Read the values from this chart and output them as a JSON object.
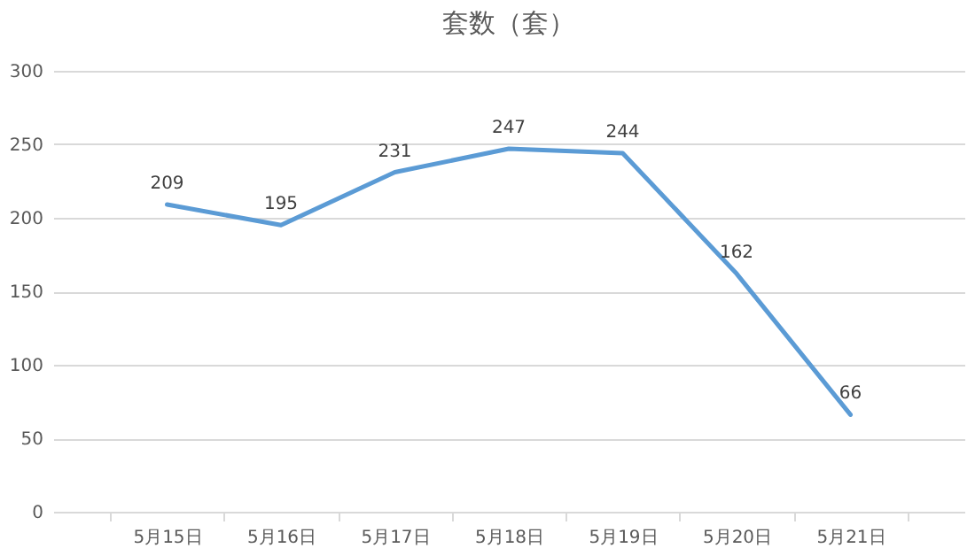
{
  "chart_data": {
    "type": "line",
    "title": "套数（套）",
    "categories": [
      "5月15日",
      "5月16日",
      "5月17日",
      "5月18日",
      "5月19日",
      "5月20日",
      "5月21日"
    ],
    "series": [
      {
        "color": "#5b9bd5",
        "values": [
          209,
          195,
          231,
          247,
          244,
          162,
          66
        ]
      }
    ],
    "ylim": [
      0,
      300
    ],
    "yticks": [
      0,
      50,
      100,
      150,
      200,
      250,
      300
    ],
    "grid": "y",
    "data_labels": true,
    "legend": false,
    "marker": "none",
    "line_style": "solid"
  }
}
